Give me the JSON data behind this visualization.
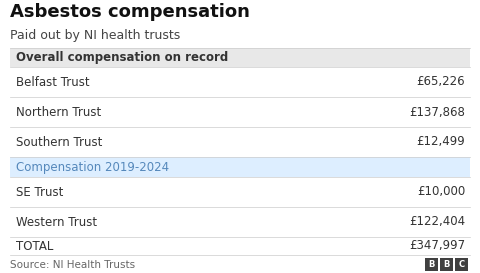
{
  "title": "Asbestos compensation",
  "subtitle": "Paid out by NI health trusts",
  "source": "Source: NI Health Trusts",
  "header1_text": "Overall compensation on record",
  "header1_bg": "#e8e8e8",
  "header2_text": "Compensation 2019-2024",
  "header2_bg": "#ddeeff",
  "rows": [
    {
      "label": "Belfast Trust",
      "value": "£65,226"
    },
    {
      "label": "Northern Trust",
      "value": "£137,868"
    },
    {
      "label": "Southern Trust",
      "value": "£12,499"
    },
    {
      "label": "SE Trust",
      "value": "£10,000"
    },
    {
      "label": "Western Trust",
      "value": "£122,404"
    },
    {
      "label": "TOTAL",
      "value": "£347,997"
    }
  ],
  "bg_color": "#ffffff",
  "header_font_size": 8.5,
  "row_font_size": 8.5,
  "title_font_size": 13,
  "subtitle_font_size": 9,
  "source_font_size": 7.5,
  "divider_color": "#cccccc",
  "header1_text_color": "#333333",
  "header2_text_color": "#5588bb",
  "row_text_color": "#333333",
  "bbc_box_color": "#404040",
  "row_bg_odd": "#ffffff",
  "row_bg_even": "#ffffff"
}
